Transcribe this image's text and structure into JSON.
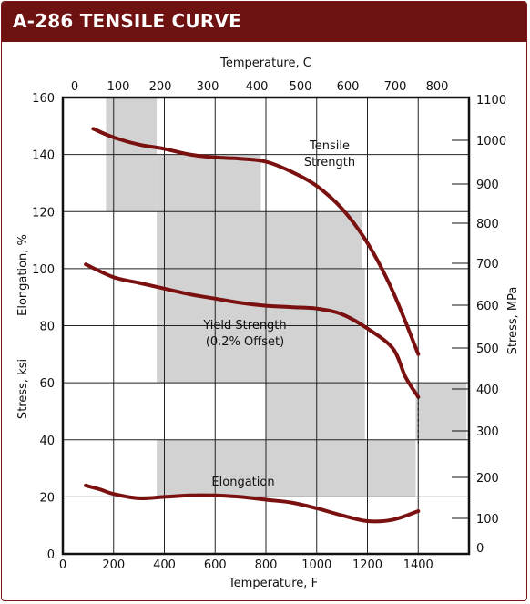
{
  "header": {
    "title": "A-286 TENSILE CURVE"
  },
  "colors": {
    "header_bg": "#6e1111",
    "curve": "#7a1010",
    "shade": "#d2d2d2"
  },
  "chart_data": {
    "type": "line",
    "title": "A-286 TENSILE CURVE",
    "x_bottom": {
      "label": "Temperature,  F",
      "range": [
        0,
        1600
      ],
      "ticks": [
        0,
        200,
        400,
        600,
        800,
        1000,
        1200,
        1400
      ]
    },
    "x_top": {
      "label": "Temperature,  C",
      "ticks": [
        0,
        100,
        200,
        300,
        400,
        500,
        600,
        700,
        800
      ]
    },
    "y_left": {
      "label_upper": "Elongation, %",
      "label_lower": "Stress, ksi",
      "range": [
        0,
        160
      ],
      "ticks": [
        0,
        20,
        40,
        60,
        80,
        100,
        120,
        140,
        160
      ]
    },
    "y_right": {
      "label": "Stress, MPa",
      "ticks": [
        0,
        100,
        200,
        300,
        400,
        500,
        600,
        700,
        800,
        900,
        1000,
        1100
      ]
    },
    "grid": true,
    "shaded_regions": [
      {
        "x": [
          170,
          370
        ],
        "y": [
          120,
          160
        ]
      },
      {
        "x": [
          370,
          780
        ],
        "y": [
          120,
          140
        ]
      },
      {
        "x": [
          370,
          1180
        ],
        "y": [
          100,
          120
        ]
      },
      {
        "x": [
          370,
          1190
        ],
        "y": [
          60,
          100
        ]
      },
      {
        "x": [
          800,
          1190
        ],
        "y": [
          40,
          60
        ]
      },
      {
        "x": [
          370,
          1390
        ],
        "y": [
          20,
          40
        ]
      },
      {
        "x": [
          1390,
          1590
        ],
        "y": [
          40,
          60
        ]
      }
    ],
    "series": [
      {
        "name": "Tensile Strength",
        "x": [
          120,
          200,
          300,
          400,
          500,
          600,
          700,
          800,
          900,
          1000,
          1100,
          1200,
          1300,
          1400
        ],
        "y": [
          149,
          146,
          143.5,
          142,
          140,
          139,
          138.5,
          137.5,
          134,
          129,
          121,
          109,
          92,
          70
        ]
      },
      {
        "name": "Yield Strength (0.2% Offset)",
        "x": [
          90,
          200,
          300,
          400,
          500,
          600,
          700,
          800,
          900,
          1000,
          1100,
          1200,
          1300,
          1350,
          1400
        ],
        "y": [
          101.5,
          97,
          95,
          93,
          91,
          89.5,
          88,
          87,
          86.5,
          86,
          84,
          79,
          72,
          62,
          55
        ]
      },
      {
        "name": "Elongation",
        "x": [
          90,
          150,
          200,
          300,
          400,
          500,
          600,
          700,
          800,
          900,
          1000,
          1100,
          1200,
          1300,
          1400
        ],
        "y": [
          24,
          22.5,
          21,
          19.5,
          20,
          20.5,
          20.5,
          20,
          19,
          18,
          16,
          13.5,
          11.5,
          12,
          15
        ]
      }
    ],
    "annotations": [
      {
        "text_lines": [
          "Tensile",
          "Strength"
        ]
      },
      {
        "text_lines": [
          "Yield Strength",
          "(0.2% Offset)"
        ]
      },
      {
        "text_lines": [
          "Elongation"
        ]
      }
    ]
  }
}
